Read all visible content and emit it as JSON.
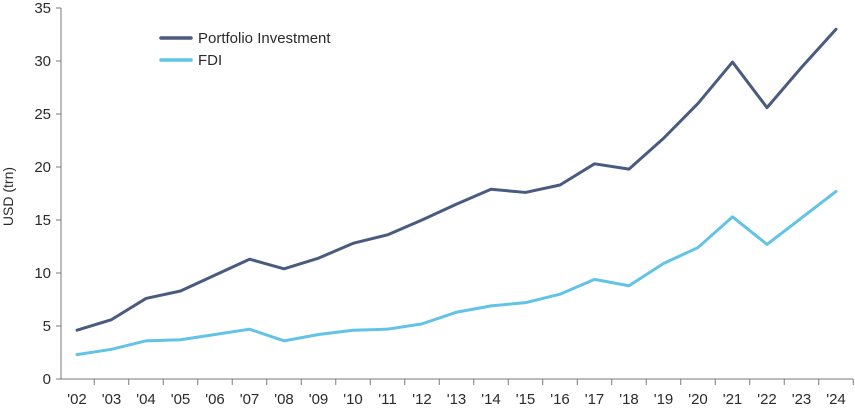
{
  "chart_data": {
    "type": "line",
    "ylabel": "USD (trn)",
    "xlabel": "",
    "ylim": [
      0,
      35
    ],
    "yticks": [
      0,
      5,
      10,
      15,
      20,
      25,
      30,
      35
    ],
    "grid": false,
    "legend_position": "top-left",
    "categories": [
      "'02",
      "'03",
      "'04",
      "'05",
      "'06",
      "'07",
      "'08",
      "'09",
      "'10",
      "'11",
      "'12",
      "'13",
      "'14",
      "'15",
      "'16",
      "'17",
      "'18",
      "'19",
      "'20",
      "'21",
      "'22",
      "'23",
      "'24"
    ],
    "series": [
      {
        "name": "Portfolio Investment",
        "color": "#4a5b80",
        "values": [
          4.6,
          5.6,
          7.6,
          8.3,
          9.8,
          11.3,
          10.4,
          11.4,
          12.8,
          13.6,
          15.0,
          16.5,
          17.9,
          17.6,
          18.3,
          20.3,
          19.8,
          22.7,
          26.0,
          29.9,
          25.6,
          29.4,
          33.0
        ]
      },
      {
        "name": "FDI",
        "color": "#62c3e6",
        "values": [
          2.3,
          2.8,
          3.6,
          3.7,
          4.2,
          4.7,
          3.6,
          4.2,
          4.6,
          4.7,
          5.2,
          6.3,
          6.9,
          7.2,
          8.0,
          9.4,
          8.8,
          10.9,
          12.4,
          15.3,
          12.7,
          15.2,
          17.7
        ]
      }
    ]
  }
}
